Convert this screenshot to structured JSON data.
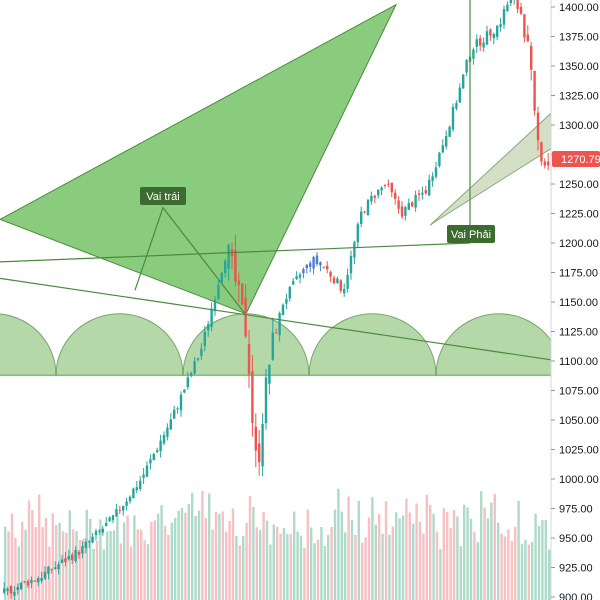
{
  "chart_data": {
    "type": "candlestick",
    "y_axis": {
      "ticks": [
        900,
        925,
        950,
        975,
        1000,
        1025,
        1050,
        1075,
        1100,
        1125,
        1150,
        1175,
        1200,
        1225,
        1250,
        1275,
        1300,
        1325,
        1350,
        1375,
        1400
      ],
      "tick_labels": [
        "900.00",
        "925.00",
        "950.00",
        "975.00",
        "1000.00",
        "1025.00",
        "1050.00",
        "1075.00",
        "1100.00",
        "1125.00",
        "1150.00",
        "1175.00",
        "1200.00",
        "1225.00",
        "1250.00",
        "1275.00",
        "1300.00",
        "1325.00",
        "1350.00",
        "1375.00",
        "1400.00"
      ],
      "range": [
        900,
        1405
      ]
    },
    "last_price": {
      "value": 1270.79,
      "label": "1270.79",
      "color": "#ef5350"
    },
    "annotations": [
      {
        "text": "Vai trái",
        "price": 1220
      },
      {
        "text": "Vai Phải",
        "price": 1204
      }
    ],
    "trendlines": [
      {
        "name": "neckline-high",
        "start_price": 1184,
        "end_price": 1200
      },
      {
        "name": "neckline-low",
        "start_price": 1170,
        "end_price": 1101
      }
    ],
    "colors": {
      "up": "#26a69a",
      "down": "#ef5350",
      "volume_up": "#a5d6c4",
      "volume_down": "#f6b9bd",
      "pattern_fill": "#6cbf5d",
      "pattern_stroke": "#4a8a3e",
      "arc_fill": "#9ccb8c",
      "label_bg": "#3d6b2f",
      "highlight": "#4a79d6"
    }
  }
}
